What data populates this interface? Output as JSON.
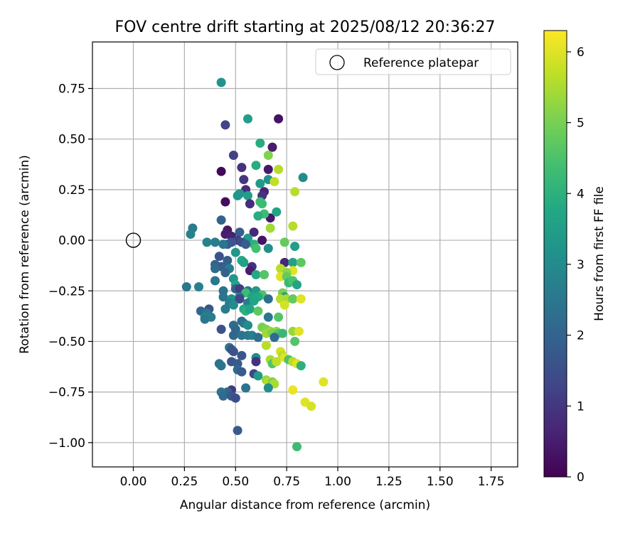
{
  "chart_data": {
    "type": "scatter",
    "title": "FOV centre drift starting at 2025/08/12 20:36:27",
    "xlabel": "Angular distance from reference (arcmin)",
    "ylabel": "Rotation from reference (arcmin)",
    "colorbar_label": "Hours from first FF file",
    "xlim": [
      -0.2,
      1.88
    ],
    "ylim": [
      -1.12,
      0.98
    ],
    "clim": [
      0,
      6.3
    ],
    "colormap": "viridis",
    "grid": true,
    "legend_position": "upper-right",
    "x_ticks": [
      "0.00",
      "0.25",
      "0.50",
      "0.75",
      "1.00",
      "1.25",
      "1.50",
      "1.75"
    ],
    "y_ticks": [
      "0.75",
      "0.50",
      "0.25",
      "0.00",
      "-0.25",
      "-0.50",
      "-0.75",
      "-1.00"
    ],
    "colorbar_ticks": [
      "0",
      "1",
      "2",
      "3",
      "4",
      "5",
      "6"
    ],
    "reference": {
      "label": "Reference platepar",
      "x": 0.0,
      "y": 0.0
    },
    "series": [
      {
        "points": [
          [
            0.43,
            0.78,
            3.2
          ],
          [
            0.71,
            0.6,
            0.3
          ],
          [
            0.56,
            0.6,
            3.5
          ],
          [
            0.45,
            0.57,
            1.3
          ],
          [
            0.62,
            0.48,
            3.9
          ],
          [
            0.68,
            0.46,
            0.5
          ],
          [
            0.49,
            0.42,
            1.2
          ],
          [
            0.66,
            0.42,
            5.1
          ],
          [
            0.53,
            0.36,
            0.9
          ],
          [
            0.6,
            0.37,
            3.9
          ],
          [
            0.66,
            0.35,
            0.4
          ],
          [
            0.71,
            0.35,
            5.6
          ],
          [
            0.43,
            0.34,
            0.1
          ],
          [
            0.54,
            0.3,
            1.0
          ],
          [
            0.66,
            0.3,
            3.2
          ],
          [
            0.69,
            0.29,
            5.7
          ],
          [
            0.83,
            0.31,
            3.0
          ],
          [
            0.62,
            0.28,
            3.4
          ],
          [
            0.55,
            0.25,
            0.8
          ],
          [
            0.64,
            0.24,
            0.6
          ],
          [
            0.52,
            0.23,
            3.3
          ],
          [
            0.63,
            0.22,
            0.9
          ],
          [
            0.79,
            0.24,
            5.6
          ],
          [
            0.56,
            0.22,
            3.5
          ],
          [
            0.51,
            0.22,
            3.3
          ],
          [
            0.62,
            0.19,
            4.3
          ],
          [
            0.45,
            0.19,
            0.2
          ],
          [
            0.57,
            0.18,
            0.8
          ],
          [
            0.63,
            0.18,
            4.3
          ],
          [
            0.67,
            0.11,
            0.4
          ],
          [
            0.64,
            0.13,
            4.3
          ],
          [
            0.7,
            0.14,
            3.7
          ],
          [
            0.61,
            0.12,
            3.9
          ],
          [
            0.43,
            0.1,
            2.0
          ],
          [
            0.29,
            0.06,
            2.6
          ],
          [
            0.28,
            0.03,
            2.8
          ],
          [
            0.46,
            0.05,
            0.4
          ],
          [
            0.67,
            0.06,
            5.4
          ],
          [
            0.78,
            0.07,
            5.6
          ],
          [
            0.52,
            0.04,
            1.9
          ],
          [
            0.59,
            0.04,
            0.7
          ],
          [
            0.45,
            0.03,
            0.5
          ],
          [
            0.48,
            0.02,
            0.6
          ],
          [
            0.51,
            0.0,
            1.2
          ],
          [
            0.56,
            0.01,
            3.4
          ],
          [
            0.63,
            0.0,
            0.3
          ],
          [
            0.48,
            -0.01,
            1.7
          ],
          [
            0.46,
            -0.02,
            1.8
          ],
          [
            0.53,
            -0.01,
            1.5
          ],
          [
            0.59,
            -0.02,
            4.0
          ],
          [
            0.74,
            -0.01,
            4.8
          ],
          [
            0.36,
            -0.01,
            2.8
          ],
          [
            0.4,
            -0.01,
            2.7
          ],
          [
            0.44,
            -0.02,
            2.5
          ],
          [
            0.55,
            -0.02,
            1.9
          ],
          [
            0.6,
            -0.04,
            4.4
          ],
          [
            0.66,
            -0.04,
            3.1
          ],
          [
            0.79,
            -0.03,
            3.5
          ],
          [
            0.42,
            -0.08,
            1.6
          ],
          [
            0.5,
            -0.06,
            3.3
          ],
          [
            0.53,
            -0.1,
            3.8
          ],
          [
            0.46,
            -0.1,
            1.9
          ],
          [
            0.54,
            -0.11,
            3.6
          ],
          [
            0.74,
            -0.11,
            0.7
          ],
          [
            0.78,
            -0.11,
            3.6
          ],
          [
            0.82,
            -0.11,
            4.7
          ],
          [
            0.4,
            -0.12,
            2.0
          ],
          [
            0.43,
            -0.13,
            1.8
          ],
          [
            0.4,
            -0.14,
            2.2
          ],
          [
            0.45,
            -0.14,
            2.0
          ],
          [
            0.47,
            -0.14,
            2.7
          ],
          [
            0.58,
            -0.13,
            0.9
          ],
          [
            0.72,
            -0.14,
            5.6
          ],
          [
            0.78,
            -0.15,
            6.0
          ],
          [
            0.57,
            -0.15,
            0.5
          ],
          [
            0.45,
            -0.16,
            2.0
          ],
          [
            0.75,
            -0.16,
            5.2
          ],
          [
            0.6,
            -0.17,
            3.8
          ],
          [
            0.64,
            -0.17,
            4.6
          ],
          [
            0.72,
            -0.18,
            6.0
          ],
          [
            0.4,
            -0.2,
            2.5
          ],
          [
            0.49,
            -0.19,
            3.3
          ],
          [
            0.75,
            -0.18,
            4.8
          ],
          [
            0.76,
            -0.21,
            4.2
          ],
          [
            0.78,
            -0.2,
            4.5
          ],
          [
            0.5,
            -0.22,
            3.7
          ],
          [
            0.8,
            -0.22,
            3.7
          ],
          [
            0.26,
            -0.23,
            2.5
          ],
          [
            0.32,
            -0.23,
            2.8
          ],
          [
            0.5,
            -0.24,
            1.9
          ],
          [
            0.52,
            -0.24,
            1.1
          ],
          [
            0.56,
            -0.25,
            2.5
          ],
          [
            0.6,
            -0.25,
            3.4
          ],
          [
            0.44,
            -0.25,
            2.4
          ],
          [
            0.55,
            -0.26,
            4.3
          ],
          [
            0.63,
            -0.27,
            4.5
          ],
          [
            0.73,
            -0.26,
            5.0
          ],
          [
            0.44,
            -0.28,
            2.4
          ],
          [
            0.52,
            -0.28,
            2.5
          ],
          [
            0.58,
            -0.28,
            3.7
          ],
          [
            0.61,
            -0.28,
            3.8
          ],
          [
            0.74,
            -0.28,
            3.6
          ],
          [
            0.48,
            -0.29,
            3.1
          ],
          [
            0.52,
            -0.29,
            1.3
          ],
          [
            0.66,
            -0.29,
            2.3
          ],
          [
            0.72,
            -0.29,
            5.6
          ],
          [
            0.75,
            -0.29,
            5.5
          ],
          [
            0.78,
            -0.29,
            4.8
          ],
          [
            0.82,
            -0.29,
            6.0
          ],
          [
            0.47,
            -0.31,
            2.7
          ],
          [
            0.49,
            -0.32,
            3.0
          ],
          [
            0.56,
            -0.31,
            2.6
          ],
          [
            0.59,
            -0.3,
            3.7
          ],
          [
            0.74,
            -0.32,
            5.9
          ],
          [
            0.45,
            -0.34,
            2.6
          ],
          [
            0.54,
            -0.34,
            3.8
          ],
          [
            0.56,
            -0.34,
            3.4
          ],
          [
            0.55,
            -0.35,
            4.0
          ],
          [
            0.57,
            -0.34,
            3.7
          ],
          [
            0.61,
            -0.35,
            4.7
          ],
          [
            0.33,
            -0.35,
            2.1
          ],
          [
            0.37,
            -0.34,
            1.6
          ],
          [
            0.36,
            -0.36,
            2.5
          ],
          [
            0.35,
            -0.38,
            2.8
          ],
          [
            0.35,
            -0.39,
            2.5
          ],
          [
            0.38,
            -0.38,
            2.6
          ],
          [
            0.66,
            -0.38,
            2.5
          ],
          [
            0.71,
            -0.38,
            4.6
          ],
          [
            0.53,
            -0.4,
            2.2
          ],
          [
            0.54,
            -0.41,
            2.4
          ],
          [
            0.56,
            -0.42,
            3.0
          ],
          [
            0.49,
            -0.42,
            2.2
          ],
          [
            0.43,
            -0.44,
            1.6
          ],
          [
            0.5,
            -0.44,
            2.1
          ],
          [
            0.63,
            -0.43,
            5.0
          ],
          [
            0.65,
            -0.44,
            5.1
          ],
          [
            0.7,
            -0.45,
            5.3
          ],
          [
            0.78,
            -0.45,
            5.3
          ],
          [
            0.81,
            -0.45,
            6.0
          ],
          [
            0.65,
            -0.46,
            5.4
          ],
          [
            0.67,
            -0.45,
            5.3
          ],
          [
            0.68,
            -0.46,
            5.0
          ],
          [
            0.71,
            -0.46,
            4.6
          ],
          [
            0.73,
            -0.46,
            4.2
          ],
          [
            0.49,
            -0.47,
            2.1
          ],
          [
            0.53,
            -0.47,
            2.4
          ],
          [
            0.56,
            -0.47,
            2.5
          ],
          [
            0.58,
            -0.47,
            2.7
          ],
          [
            0.61,
            -0.48,
            2.3
          ],
          [
            0.69,
            -0.48,
            2.2
          ],
          [
            0.79,
            -0.5,
            4.6
          ],
          [
            0.65,
            -0.52,
            5.6
          ],
          [
            0.47,
            -0.53,
            2.5
          ],
          [
            0.48,
            -0.54,
            1.6
          ],
          [
            0.49,
            -0.55,
            1.6
          ],
          [
            0.53,
            -0.57,
            1.7
          ],
          [
            0.72,
            -0.55,
            5.9
          ],
          [
            0.73,
            -0.57,
            5.6
          ],
          [
            0.74,
            -0.58,
            6.0
          ],
          [
            0.76,
            -0.59,
            4.5
          ],
          [
            0.78,
            -0.6,
            5.6
          ],
          [
            0.8,
            -0.61,
            6.0
          ],
          [
            0.82,
            -0.62,
            4.0
          ],
          [
            0.6,
            -0.58,
            3.0
          ],
          [
            0.6,
            -0.6,
            0.9
          ],
          [
            0.67,
            -0.59,
            5.5
          ],
          [
            0.68,
            -0.61,
            4.6
          ],
          [
            0.7,
            -0.6,
            5.7
          ],
          [
            0.42,
            -0.61,
            2.3
          ],
          [
            0.43,
            -0.62,
            2.4
          ],
          [
            0.48,
            -0.6,
            1.7
          ],
          [
            0.51,
            -0.61,
            1.8
          ],
          [
            0.51,
            -0.64,
            2.1
          ],
          [
            0.53,
            -0.65,
            1.8
          ],
          [
            0.59,
            -0.66,
            1.3
          ],
          [
            0.61,
            -0.67,
            3.4
          ],
          [
            0.65,
            -0.69,
            5.3
          ],
          [
            0.66,
            -0.7,
            5.6
          ],
          [
            0.68,
            -0.7,
            5.1
          ],
          [
            0.69,
            -0.71,
            5.5
          ],
          [
            0.66,
            -0.73,
            3.1
          ],
          [
            0.55,
            -0.73,
            2.4
          ],
          [
            0.48,
            -0.74,
            1.0
          ],
          [
            0.46,
            -0.75,
            2.1
          ],
          [
            0.43,
            -0.75,
            2.4
          ],
          [
            0.44,
            -0.77,
            2.2
          ],
          [
            0.48,
            -0.77,
            1.7
          ],
          [
            0.5,
            -0.78,
            1.5
          ],
          [
            0.78,
            -0.74,
            6.1
          ],
          [
            0.93,
            -0.7,
            6.0
          ],
          [
            0.84,
            -0.8,
            6.0
          ],
          [
            0.87,
            -0.82,
            5.9
          ],
          [
            0.51,
            -0.94,
            1.8
          ],
          [
            0.8,
            -1.02,
            4.3
          ]
        ]
      }
    ]
  }
}
